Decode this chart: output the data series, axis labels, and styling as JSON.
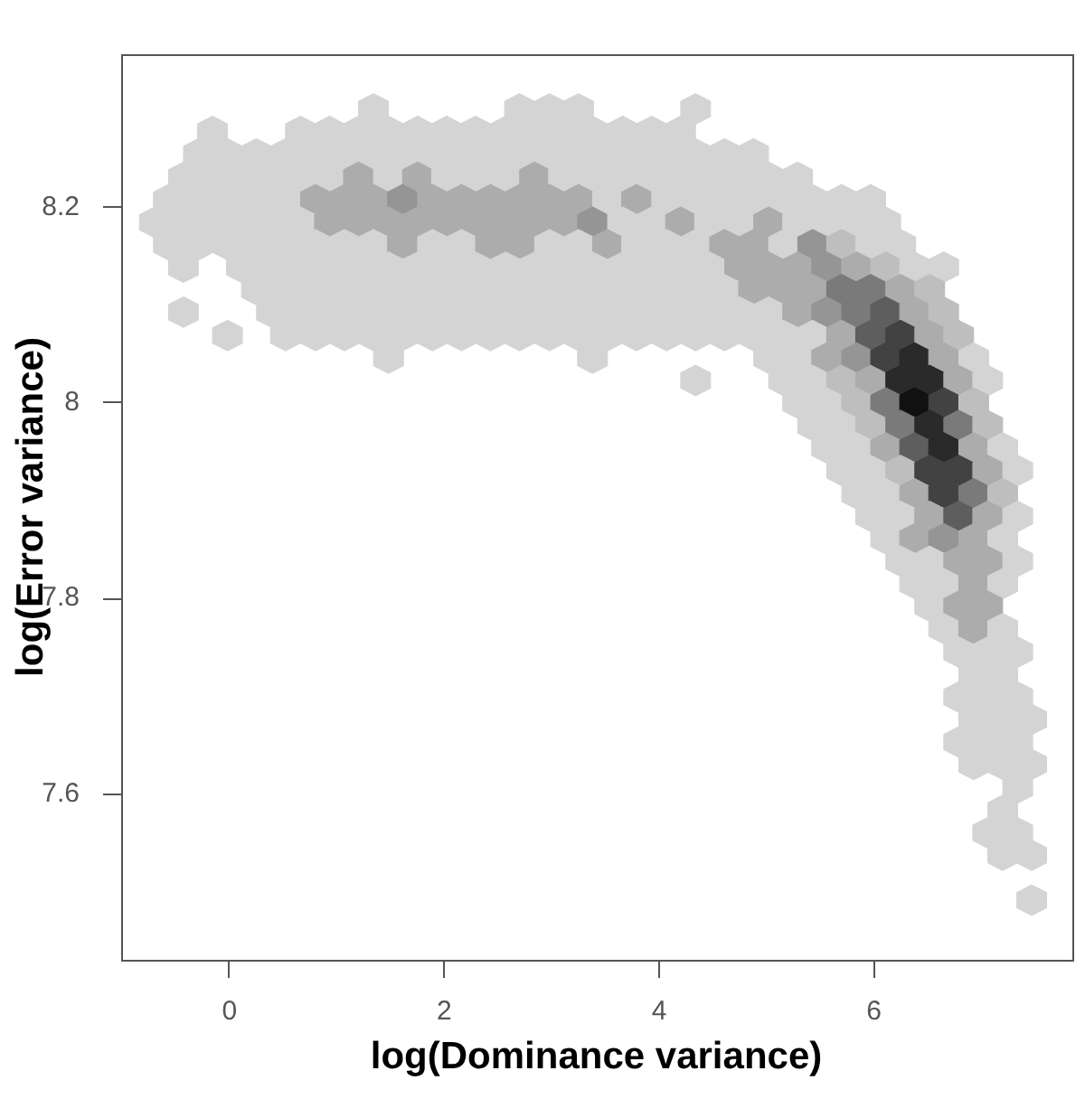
{
  "chart_data": {
    "type": "scatter",
    "xlabel": "log(Dominance variance)",
    "ylabel": "log(Error variance)",
    "xlim": [
      -1.01,
      7.84
    ],
    "ylim": [
      7.43,
      8.357
    ],
    "xticks": [
      0,
      2,
      4,
      6
    ],
    "yticks": [
      7.6,
      7.8,
      8,
      8.2
    ],
    "x": [
      1.34,
      2.7,
      2.98,
      3.25,
      4.34,
      -0.16,
      0.66,
      0.93,
      1.2,
      1.48,
      1.75,
      2.02,
      2.29,
      2.57,
      2.84,
      3.11,
      3.38,
      3.66,
      3.93,
      4.2,
      -0.29,
      -0.02,
      0.25,
      0.52,
      0.8,
      1.07,
      1.34,
      1.61,
      1.89,
      2.16,
      2.43,
      2.7,
      2.98,
      3.25,
      3.52,
      3.79,
      4.07,
      4.34,
      4.61,
      4.88,
      -0.43,
      -0.16,
      0.11,
      0.39,
      0.66,
      0.93,
      1.2,
      1.48,
      1.75,
      2.02,
      2.29,
      2.57,
      2.84,
      3.11,
      3.38,
      3.66,
      3.93,
      4.2,
      4.47,
      4.75,
      5.02,
      5.29,
      -0.57,
      -0.29,
      -0.02,
      0.25,
      0.52,
      0.8,
      1.07,
      1.34,
      1.61,
      1.89,
      2.16,
      2.43,
      2.7,
      2.98,
      3.25,
      3.52,
      3.79,
      4.07,
      4.34,
      4.61,
      4.88,
      5.16,
      5.43,
      5.7,
      5.97,
      -0.7,
      -0.43,
      -0.16,
      0.11,
      0.39,
      0.66,
      0.93,
      1.2,
      1.48,
      1.75,
      2.02,
      2.29,
      2.57,
      2.84,
      3.11,
      3.38,
      3.66,
      3.93,
      4.2,
      4.47,
      4.75,
      5.02,
      5.29,
      5.56,
      5.84,
      6.11,
      -0.57,
      -0.29,
      -0.02,
      0.25,
      0.52,
      0.8,
      1.07,
      1.34,
      1.61,
      1.89,
      2.16,
      2.43,
      2.7,
      2.98,
      3.25,
      3.52,
      3.79,
      4.07,
      4.34,
      4.61,
      4.88,
      5.16,
      5.43,
      5.7,
      5.97,
      6.25,
      -0.43,
      0.11,
      0.39,
      0.66,
      0.93,
      1.2,
      1.48,
      1.75,
      2.02,
      2.29,
      2.57,
      2.84,
      3.11,
      3.38,
      3.66,
      3.93,
      4.2,
      4.47,
      4.75,
      5.02,
      5.29,
      5.56,
      5.84,
      6.11,
      6.38,
      6.65,
      0.25,
      0.52,
      0.8,
      1.07,
      1.34,
      1.61,
      1.89,
      2.16,
      2.43,
      2.7,
      2.98,
      3.25,
      3.52,
      3.79,
      4.07,
      4.34,
      4.61,
      4.88,
      5.16,
      5.43,
      5.7,
      5.97,
      6.25,
      6.52,
      -0.43,
      0.39,
      0.66,
      0.93,
      1.2,
      1.48,
      1.75,
      2.02,
      2.29,
      2.57,
      2.84,
      3.11,
      3.38,
      3.66,
      3.93,
      4.2,
      4.47,
      4.75,
      5.02,
      5.29,
      5.56,
      5.84,
      6.11,
      6.38,
      6.65,
      -0.02,
      0.52,
      0.8,
      1.07,
      1.34,
      1.61,
      1.89,
      2.16,
      2.43,
      2.7,
      2.98,
      3.25,
      3.52,
      3.79,
      4.07,
      4.34,
      4.61,
      4.88,
      5.16,
      5.43,
      5.7,
      5.97,
      6.25,
      6.52,
      6.79,
      1.48,
      3.38,
      5.02,
      5.29,
      5.56,
      5.84,
      6.11,
      6.38,
      6.65,
      6.93,
      4.34,
      5.16,
      5.43,
      5.7,
      5.97,
      6.25,
      6.52,
      6.79,
      7.06,
      5.29,
      5.56,
      5.84,
      6.11,
      6.38,
      6.65,
      6.93,
      5.43,
      5.7,
      5.97,
      6.25,
      6.52,
      6.79,
      7.06,
      5.56,
      5.84,
      6.11,
      6.38,
      6.65,
      6.93,
      7.2,
      5.7,
      5.97,
      6.25,
      6.52,
      6.79,
      7.06,
      7.34,
      5.84,
      6.11,
      6.38,
      6.65,
      6.93,
      7.2,
      5.97,
      6.25,
      6.52,
      6.79,
      7.06,
      7.34,
      6.11,
      6.38,
      6.65,
      6.93,
      7.2,
      6.25,
      6.52,
      6.79,
      7.06,
      7.34,
      6.38,
      6.65,
      6.93,
      7.2,
      6.52,
      6.79,
      7.06,
      6.65,
      6.93,
      7.2,
      6.79,
      7.06,
      7.34,
      6.93,
      7.2,
      6.79,
      7.06,
      7.34,
      6.93,
      7.2,
      7.47,
      6.79,
      7.06,
      7.34,
      6.93,
      7.2,
      7.47,
      7.34,
      7.2,
      7.06,
      7.34,
      7.2,
      7.47,
      7.47
    ],
    "values": [
      8.301,
      8.301,
      8.301,
      8.301,
      8.301,
      8.278,
      8.278,
      8.278,
      8.278,
      8.278,
      8.278,
      8.278,
      8.278,
      8.278,
      8.278,
      8.278,
      8.278,
      8.278,
      8.278,
      8.278,
      8.255,
      8.255,
      8.255,
      8.255,
      8.255,
      8.255,
      8.255,
      8.255,
      8.255,
      8.255,
      8.255,
      8.255,
      8.255,
      8.255,
      8.255,
      8.255,
      8.255,
      8.255,
      8.255,
      8.255,
      8.231,
      8.231,
      8.231,
      8.231,
      8.231,
      8.231,
      8.231,
      8.231,
      8.231,
      8.231,
      8.231,
      8.231,
      8.231,
      8.231,
      8.231,
      8.231,
      8.231,
      8.231,
      8.231,
      8.231,
      8.231,
      8.231,
      8.208,
      8.208,
      8.208,
      8.208,
      8.208,
      8.208,
      8.208,
      8.208,
      8.208,
      8.208,
      8.208,
      8.208,
      8.208,
      8.208,
      8.208,
      8.208,
      8.208,
      8.208,
      8.208,
      8.208,
      8.208,
      8.208,
      8.208,
      8.208,
      8.208,
      8.185,
      8.185,
      8.185,
      8.185,
      8.185,
      8.185,
      8.185,
      8.185,
      8.185,
      8.185,
      8.185,
      8.185,
      8.185,
      8.185,
      8.185,
      8.185,
      8.185,
      8.185,
      8.185,
      8.185,
      8.185,
      8.185,
      8.185,
      8.185,
      8.185,
      8.185,
      8.162,
      8.162,
      8.162,
      8.162,
      8.162,
      8.162,
      8.162,
      8.162,
      8.162,
      8.162,
      8.162,
      8.162,
      8.162,
      8.162,
      8.162,
      8.162,
      8.162,
      8.162,
      8.162,
      8.162,
      8.162,
      8.162,
      8.162,
      8.162,
      8.162,
      8.162,
      8.139,
      8.139,
      8.139,
      8.139,
      8.139,
      8.139,
      8.139,
      8.139,
      8.139,
      8.139,
      8.139,
      8.139,
      8.139,
      8.139,
      8.139,
      8.139,
      8.139,
      8.139,
      8.139,
      8.139,
      8.139,
      8.139,
      8.139,
      8.139,
      8.139,
      8.139,
      8.116,
      8.116,
      8.116,
      8.116,
      8.116,
      8.116,
      8.116,
      8.116,
      8.116,
      8.116,
      8.116,
      8.116,
      8.116,
      8.116,
      8.116,
      8.116,
      8.116,
      8.116,
      8.116,
      8.116,
      8.116,
      8.116,
      8.116,
      8.116,
      8.093,
      8.093,
      8.093,
      8.093,
      8.093,
      8.093,
      8.093,
      8.093,
      8.093,
      8.093,
      8.093,
      8.093,
      8.093,
      8.093,
      8.093,
      8.093,
      8.093,
      8.093,
      8.093,
      8.093,
      8.093,
      8.093,
      8.093,
      8.093,
      8.093,
      8.069,
      8.069,
      8.069,
      8.069,
      8.069,
      8.069,
      8.069,
      8.069,
      8.069,
      8.069,
      8.069,
      8.069,
      8.069,
      8.069,
      8.069,
      8.069,
      8.069,
      8.069,
      8.069,
      8.069,
      8.069,
      8.069,
      8.069,
      8.069,
      8.069,
      8.046,
      8.046,
      8.046,
      8.046,
      8.046,
      8.046,
      8.046,
      8.046,
      8.046,
      8.046,
      8.023,
      8.023,
      8.023,
      8.023,
      8.023,
      8.023,
      8.023,
      8.023,
      8.023,
      8,
      8,
      8,
      8,
      8,
      8,
      8,
      7.977,
      7.977,
      7.977,
      7.977,
      7.977,
      7.977,
      7.977,
      7.954,
      7.954,
      7.954,
      7.954,
      7.954,
      7.954,
      7.954,
      7.931,
      7.931,
      7.931,
      7.931,
      7.931,
      7.931,
      7.931,
      7.907,
      7.907,
      7.907,
      7.907,
      7.907,
      7.907,
      7.884,
      7.884,
      7.884,
      7.884,
      7.884,
      7.884,
      7.861,
      7.861,
      7.861,
      7.861,
      7.861,
      7.838,
      7.838,
      7.838,
      7.838,
      7.838,
      7.815,
      7.815,
      7.815,
      7.815,
      7.792,
      7.792,
      7.792,
      7.769,
      7.769,
      7.769,
      7.745,
      7.745,
      7.745,
      7.722,
      7.722,
      7.699,
      7.699,
      7.699,
      7.676,
      7.676,
      7.676,
      7.653,
      7.653,
      7.653,
      7.63,
      7.63,
      7.63,
      7.606,
      7.583,
      7.56,
      7.56,
      7.537,
      7.537,
      7.491
    ],
    "colors": [
      "#d4d4d4",
      "#d4d4d4",
      "#d4d4d4",
      "#d4d4d4",
      "#d4d4d4",
      "#d4d4d4",
      "#d4d4d4",
      "#d4d4d4",
      "#d4d4d4",
      "#d4d4d4",
      "#d4d4d4",
      "#d4d4d4",
      "#d4d4d4",
      "#d4d4d4",
      "#d4d4d4",
      "#d4d4d4",
      "#d4d4d4",
      "#d4d4d4",
      "#d4d4d4",
      "#d4d4d4",
      "#d4d4d4",
      "#d4d4d4",
      "#d4d4d4",
      "#d4d4d4",
      "#d4d4d4",
      "#d4d4d4",
      "#d4d4d4",
      "#d4d4d4",
      "#d4d4d4",
      "#d4d4d4",
      "#d4d4d4",
      "#d4d4d4",
      "#d4d4d4",
      "#d4d4d4",
      "#d4d4d4",
      "#d4d4d4",
      "#d4d4d4",
      "#d4d4d4",
      "#d4d4d4",
      "#d4d4d4",
      "#d4d4d4",
      "#d4d4d4",
      "#d4d4d4",
      "#d4d4d4",
      "#d4d4d4",
      "#d4d4d4",
      "#acacac",
      "#d4d4d4",
      "#acacac",
      "#d4d4d4",
      "#d4d4d4",
      "#d4d4d4",
      "#acacac",
      "#d4d4d4",
      "#d4d4d4",
      "#d4d4d4",
      "#d4d4d4",
      "#d4d4d4",
      "#d4d4d4",
      "#d4d4d4",
      "#d4d4d4",
      "#d4d4d4",
      "#d4d4d4",
      "#d4d4d4",
      "#d4d4d4",
      "#d4d4d4",
      "#d4d4d4",
      "#acacac",
      "#acacac",
      "#acacac",
      "#959595",
      "#acacac",
      "#acacac",
      "#acacac",
      "#acacac",
      "#acacac",
      "#acacac",
      "#d4d4d4",
      "#acacac",
      "#d4d4d4",
      "#d4d4d4",
      "#d4d4d4",
      "#d4d4d4",
      "#d4d4d4",
      "#d4d4d4",
      "#d4d4d4",
      "#d4d4d4",
      "#d4d4d4",
      "#d4d4d4",
      "#d4d4d4",
      "#d4d4d4",
      "#d4d4d4",
      "#d4d4d4",
      "#acacac",
      "#acacac",
      "#acacac",
      "#acacac",
      "#acacac",
      "#acacac",
      "#acacac",
      "#acacac",
      "#acacac",
      "#959595",
      "#d4d4d4",
      "#d4d4d4",
      "#acacac",
      "#d4d4d4",
      "#d4d4d4",
      "#acacac",
      "#d4d4d4",
      "#d4d4d4",
      "#d4d4d4",
      "#d4d4d4",
      "#d4d4d4",
      "#d4d4d4",
      "#d4d4d4",
      "#d4d4d4",
      "#d4d4d4",
      "#d4d4d4",
      "#d4d4d4",
      "#d4d4d4",
      "#acacac",
      "#d4d4d4",
      "#d4d4d4",
      "#acacac",
      "#acacac",
      "#d4d4d4",
      "#d4d4d4",
      "#acacac",
      "#d4d4d4",
      "#d4d4d4",
      "#d4d4d4",
      "#acacac",
      "#acacac",
      "#d4d4d4",
      "#959595",
      "#bebebe",
      "#d4d4d4",
      "#d4d4d4",
      "#d4d4d4",
      "#d4d4d4",
      "#d4d4d4",
      "#d4d4d4",
      "#d4d4d4",
      "#d4d4d4",
      "#d4d4d4",
      "#d4d4d4",
      "#d4d4d4",
      "#d4d4d4",
      "#d4d4d4",
      "#d4d4d4",
      "#d4d4d4",
      "#d4d4d4",
      "#d4d4d4",
      "#d4d4d4",
      "#d4d4d4",
      "#d4d4d4",
      "#acacac",
      "#acacac",
      "#acacac",
      "#959595",
      "#acacac",
      "#bebebe",
      "#d4d4d4",
      "#d4d4d4",
      "#d4d4d4",
      "#d4d4d4",
      "#d4d4d4",
      "#d4d4d4",
      "#d4d4d4",
      "#d4d4d4",
      "#d4d4d4",
      "#d4d4d4",
      "#d4d4d4",
      "#d4d4d4",
      "#d4d4d4",
      "#d4d4d4",
      "#d4d4d4",
      "#d4d4d4",
      "#d4d4d4",
      "#d4d4d4",
      "#d4d4d4",
      "#acacac",
      "#acacac",
      "#acacac",
      "#7a7a7a",
      "#7a7a7a",
      "#acacac",
      "#bebebe",
      "#d4d4d4",
      "#d4d4d4",
      "#d4d4d4",
      "#d4d4d4",
      "#d4d4d4",
      "#d4d4d4",
      "#d4d4d4",
      "#d4d4d4",
      "#d4d4d4",
      "#d4d4d4",
      "#d4d4d4",
      "#d4d4d4",
      "#d4d4d4",
      "#d4d4d4",
      "#d4d4d4",
      "#d4d4d4",
      "#d4d4d4",
      "#d4d4d4",
      "#d4d4d4",
      "#acacac",
      "#959595",
      "#7a7a7a",
      "#5e5e5e",
      "#acacac",
      "#bebebe",
      "#d4d4d4",
      "#d4d4d4",
      "#d4d4d4",
      "#d4d4d4",
      "#d4d4d4",
      "#d4d4d4",
      "#d4d4d4",
      "#d4d4d4",
      "#d4d4d4",
      "#d4d4d4",
      "#d4d4d4",
      "#d4d4d4",
      "#d4d4d4",
      "#d4d4d4",
      "#d4d4d4",
      "#d4d4d4",
      "#d4d4d4",
      "#d4d4d4",
      "#d4d4d4",
      "#d4d4d4",
      "#acacac",
      "#5e5e5e",
      "#424242",
      "#acacac",
      "#bebebe",
      "#d4d4d4",
      "#d4d4d4",
      "#d4d4d4",
      "#d4d4d4",
      "#acacac",
      "#959595",
      "#424242",
      "#2a2a2a",
      "#acacac",
      "#d4d4d4",
      "#d4d4d4",
      "#d4d4d4",
      "#d4d4d4",
      "#bebebe",
      "#acacac",
      "#2a2a2a",
      "#2a2a2a",
      "#acacac",
      "#d4d4d4",
      "#d4d4d4",
      "#d4d4d4",
      "#bebebe",
      "#7a7a7a",
      "#111111",
      "#424242",
      "#bebebe",
      "#d4d4d4",
      "#d4d4d4",
      "#bebebe",
      "#7a7a7a",
      "#2a2a2a",
      "#7a7a7a",
      "#bebebe",
      "#d4d4d4",
      "#d4d4d4",
      "#acacac",
      "#5e5e5e",
      "#2a2a2a",
      "#acacac",
      "#d4d4d4",
      "#d4d4d4",
      "#d4d4d4",
      "#bebebe",
      "#424242",
      "#424242",
      "#acacac",
      "#d4d4d4",
      "#d4d4d4",
      "#d4d4d4",
      "#acacac",
      "#424242",
      "#7a7a7a",
      "#bebebe",
      "#d4d4d4",
      "#d4d4d4",
      "#acacac",
      "#5e5e5e",
      "#acacac",
      "#d4d4d4",
      "#d4d4d4",
      "#acacac",
      "#959595",
      "#acacac",
      "#d4d4d4",
      "#d4d4d4",
      "#d4d4d4",
      "#acacac",
      "#acacac",
      "#d4d4d4",
      "#d4d4d4",
      "#d4d4d4",
      "#acacac",
      "#d4d4d4",
      "#d4d4d4",
      "#acacac",
      "#acacac",
      "#d4d4d4",
      "#acacac",
      "#d4d4d4",
      "#d4d4d4",
      "#d4d4d4",
      "#d4d4d4",
      "#d4d4d4",
      "#d4d4d4",
      "#d4d4d4",
      "#d4d4d4",
      "#d4d4d4",
      "#d4d4d4",
      "#d4d4d4",
      "#d4d4d4",
      "#d4d4d4",
      "#d4d4d4",
      "#d4d4d4",
      "#d4d4d4",
      "#d4d4d4",
      "#d4d4d4",
      "#d4d4d4",
      "#d4d4d4",
      "#d4d4d4",
      "#d4d4d4",
      "#d4d4d4",
      "#d4d4d4",
      "#d4d4d4"
    ]
  }
}
